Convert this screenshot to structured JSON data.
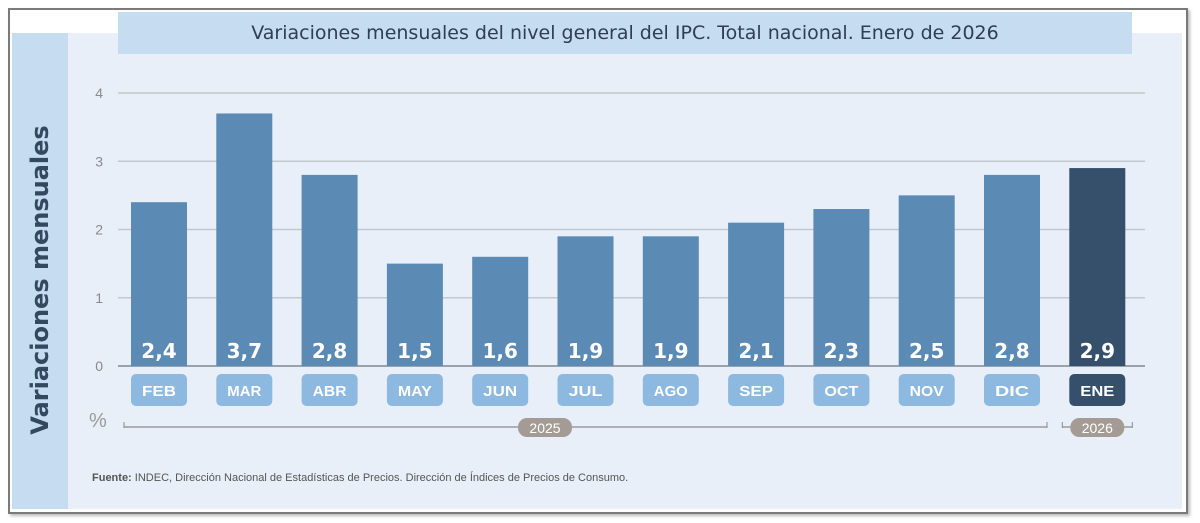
{
  "chart_data": {
    "type": "bar",
    "title": "Variaciones mensuales del nivel general del IPC. Total nacional. Enero de 2026",
    "ylabel": "Variaciones mensuales",
    "unit": "%",
    "categories": [
      "FEB",
      "MAR",
      "ABR",
      "MAY",
      "JUN",
      "JUL",
      "AGO",
      "SEP",
      "OCT",
      "NOV",
      "DIC",
      "ENE"
    ],
    "values": [
      2.4,
      3.7,
      2.8,
      1.5,
      1.6,
      1.9,
      1.9,
      2.1,
      2.3,
      2.5,
      2.8,
      2.9
    ],
    "value_labels": [
      "2,4",
      "3,7",
      "2,8",
      "1,5",
      "1,6",
      "1,9",
      "1,9",
      "2,1",
      "2,3",
      "2,5",
      "2,8",
      "2,9"
    ],
    "year_groups": [
      {
        "label": "2025",
        "count": 11
      },
      {
        "label": "2026",
        "count": 1
      }
    ],
    "yticks": [
      "0",
      "1",
      "2",
      "3",
      "4"
    ],
    "ylim": [
      0,
      4
    ],
    "grid": true,
    "colors": {
      "bar": "#5b8ab5",
      "highlight_bar": "#364f6b",
      "month_label": "#8db8e0",
      "highlight_label": "#364f6b",
      "year_badge": "#a49c94"
    }
  },
  "source": {
    "label": "Fuente:",
    "text": " INDEC, Dirección Nacional de Estadísticas de Precios. Dirección de Índices de Precios de Consumo."
  }
}
